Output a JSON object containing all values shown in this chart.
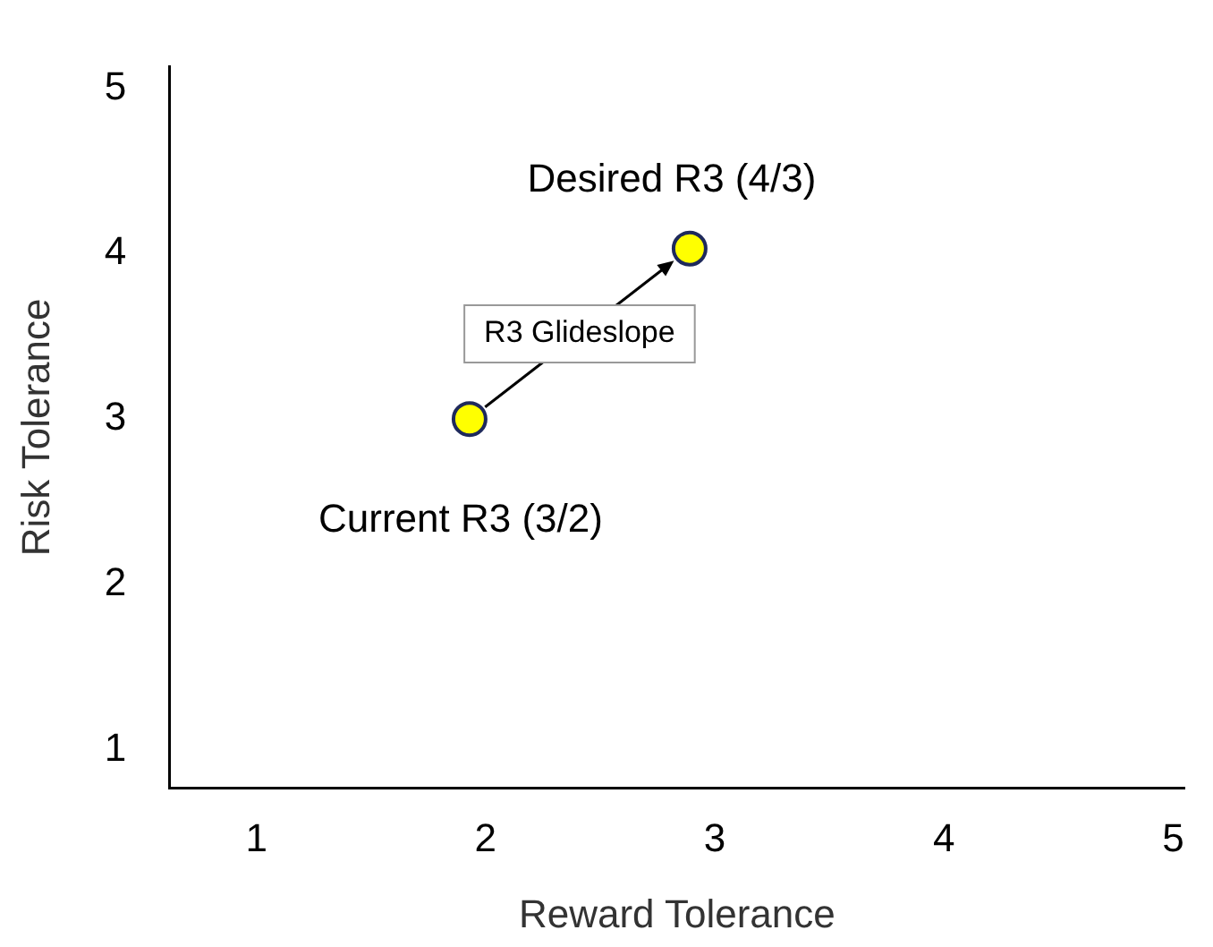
{
  "chart_data": {
    "type": "scatter",
    "xlabel": "Reward Tolerance",
    "ylabel": "Risk Tolerance",
    "x": [
      1.93,
      2.89
    ],
    "values": [
      3.0,
      4.03
    ],
    "color": "#ffff00",
    "marker": "circle",
    "xlim": [
      0.62,
      5.05
    ],
    "ylim": [
      0.77,
      5.13
    ],
    "xticks": [
      1,
      2,
      3,
      4,
      5
    ],
    "yticks": [
      1,
      2,
      3,
      4,
      5
    ],
    "grid": false,
    "legend": false,
    "annotations": [
      {
        "text": "Current R3 (3/2)",
        "x": 1.93,
        "y": 3.0
      },
      {
        "text": "Desired R3 (4/3)",
        "x": 2.89,
        "y": 4.03
      },
      "R3 Glideslope"
    ]
  }
}
